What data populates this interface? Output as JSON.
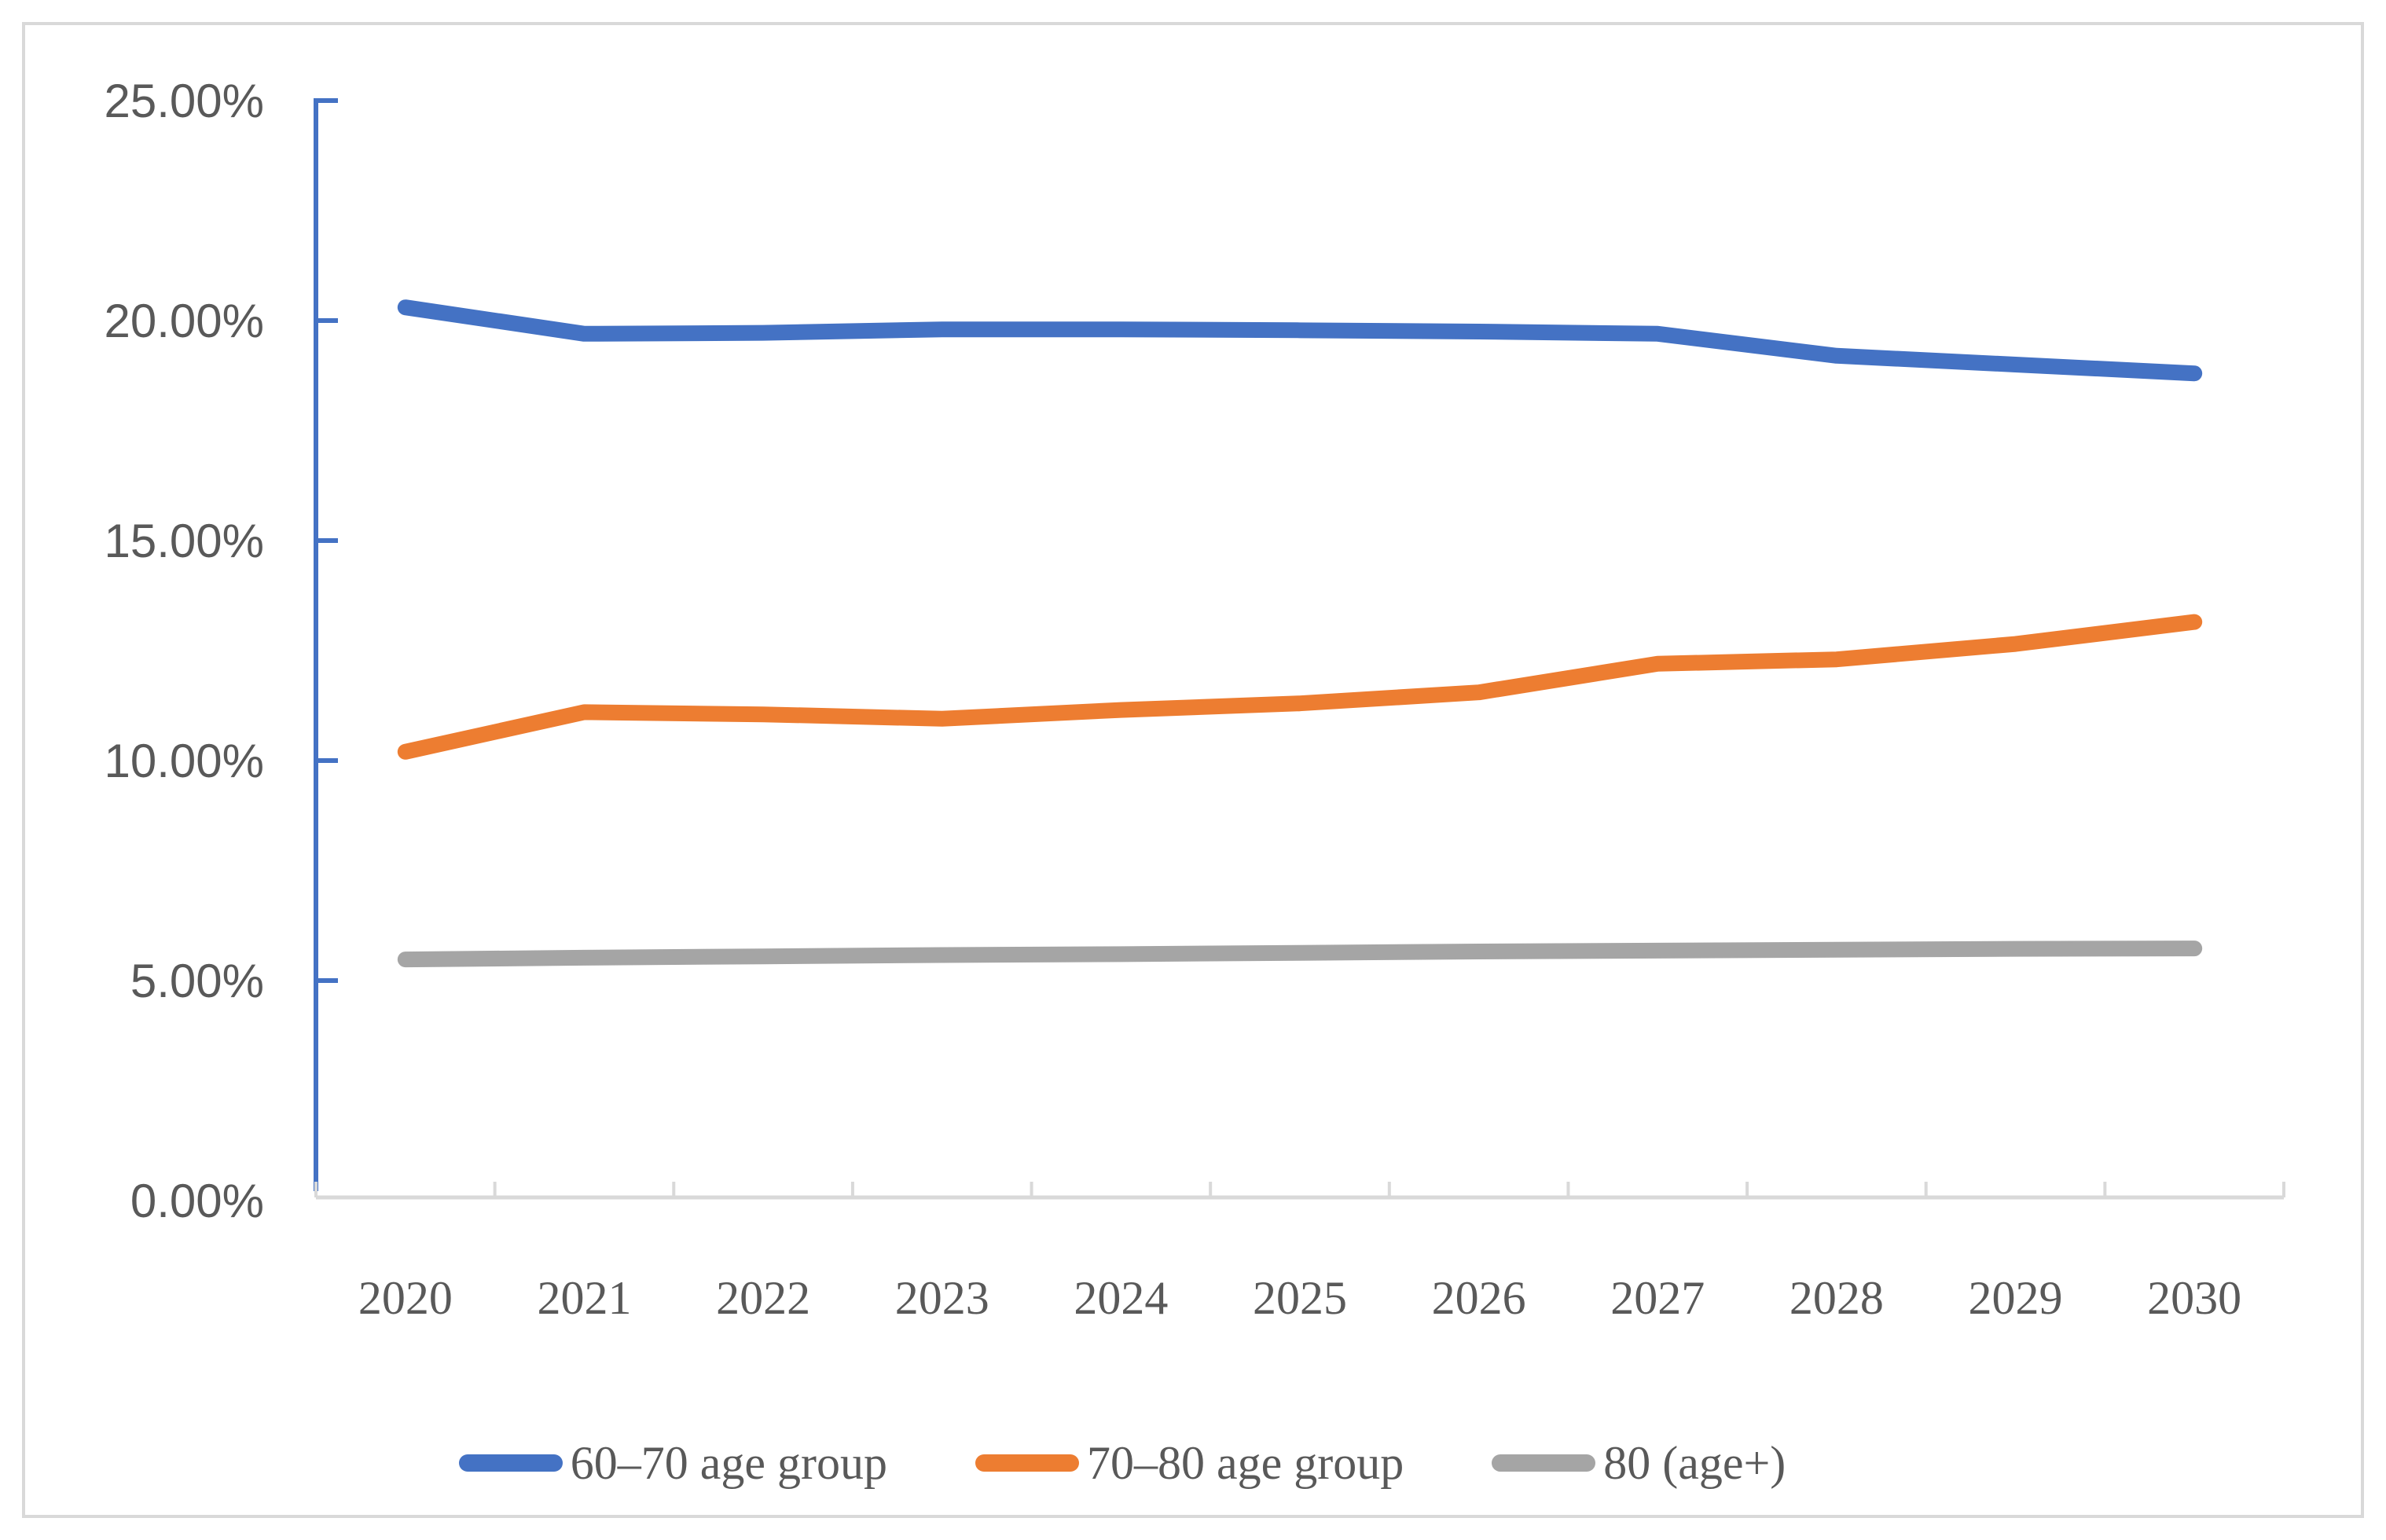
{
  "figure": {
    "background": "#FFFFFF",
    "border_color": "#D9D9D9"
  },
  "chart_data": {
    "type": "line",
    "title": "",
    "xlabel": "",
    "ylabel": "",
    "categories": [
      "2020",
      "2021",
      "2022",
      "2023",
      "2024",
      "2025",
      "2026",
      "2027",
      "2028",
      "2029",
      "2030"
    ],
    "series": [
      {
        "name": "60–70 age group",
        "color": "#4472C4",
        "values": [
          20.3,
          19.7,
          19.72,
          19.8,
          19.8,
          19.78,
          19.75,
          19.7,
          19.2,
          19.0,
          18.8
        ]
      },
      {
        "name": "70–80 age group",
        "color": "#ED7D31",
        "values": [
          10.2,
          11.1,
          11.05,
          10.95,
          11.15,
          11.3,
          11.55,
          12.2,
          12.3,
          12.65,
          13.15
        ]
      },
      {
        "name": "80 (age+)",
        "color": "#A5A5A5",
        "values": [
          5.48,
          5.52,
          5.55,
          5.58,
          5.6,
          5.63,
          5.66,
          5.68,
          5.7,
          5.72,
          5.73
        ]
      }
    ],
    "ylim": [
      0,
      25
    ],
    "ytick_step": 5,
    "ytick_labels": [
      "0.00%",
      "5.00%",
      "10.00%",
      "15.00%",
      "20.00%",
      "25.00%"
    ],
    "grid": false,
    "legend_position": "bottom",
    "axis_style": {
      "y_axis_color": "#4472C4",
      "x_axis_color": "#D9D9D9",
      "tick_label_color": "#595959"
    }
  }
}
